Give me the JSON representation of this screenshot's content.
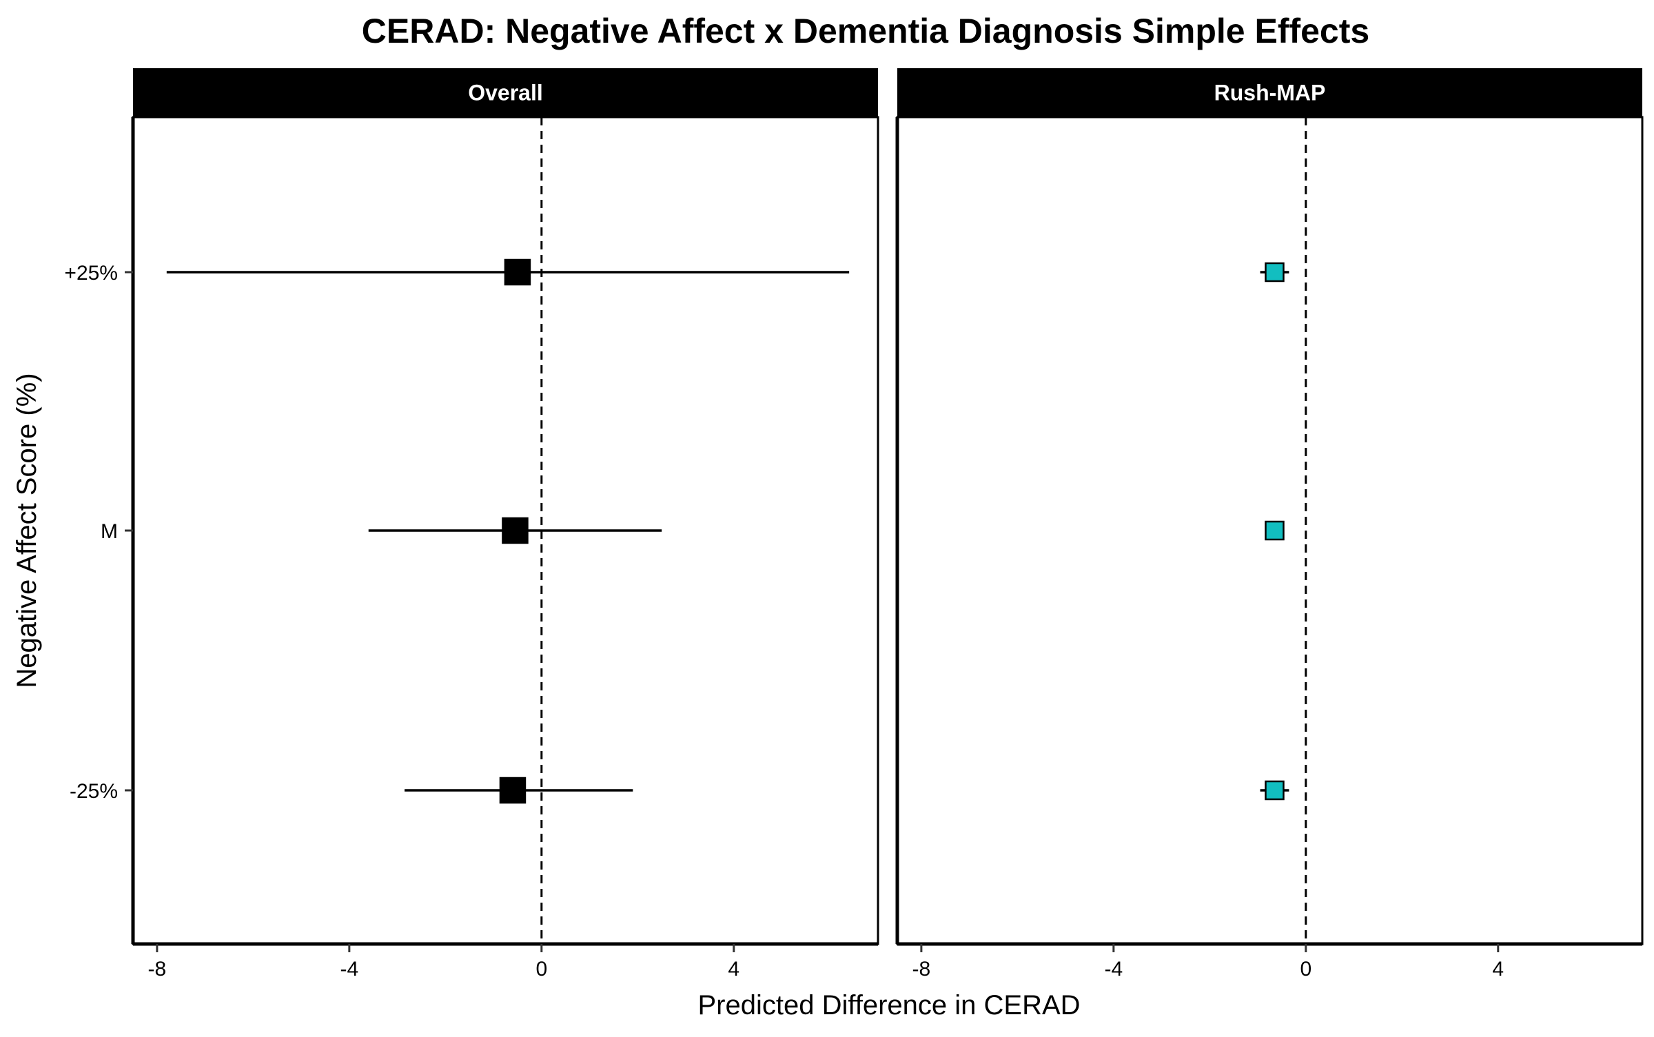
{
  "chart_data": {
    "type": "scatter",
    "subtype": "forest-plot",
    "title": "CERAD: Negative Affect x Dementia Diagnosis Simple Effects",
    "xlabel": "Predicted Difference in CERAD",
    "ylabel": "Negative Affect Score (%)",
    "xlim": [
      -8.5,
      7
    ],
    "x_ticks": [
      -8,
      -4,
      0,
      4
    ],
    "x_tick_labels": [
      "-8",
      "-4",
      "0",
      "4"
    ],
    "categories": [
      "+25%",
      "M",
      "-25%"
    ],
    "reference_line": {
      "x": 0,
      "style": "dashed"
    },
    "grid": false,
    "panels": [
      {
        "label": "Overall",
        "marker_color": "#000000",
        "marker_size": "large",
        "series": [
          {
            "category": "+25%",
            "estimate": -0.5,
            "ci_low": -7.8,
            "ci_high": 6.4
          },
          {
            "category": "M",
            "estimate": -0.55,
            "ci_low": -3.6,
            "ci_high": 2.5
          },
          {
            "category": "-25%",
            "estimate": -0.6,
            "ci_low": -2.85,
            "ci_high": 1.9
          }
        ]
      },
      {
        "label": "Rush-MAP",
        "marker_color": "#12BEC0",
        "marker_size": "small",
        "series": [
          {
            "category": "+25%",
            "estimate": -0.65,
            "ci_low": -0.95,
            "ci_high": -0.35
          },
          {
            "category": "M",
            "estimate": -0.65,
            "ci_low": -0.72,
            "ci_high": -0.58
          },
          {
            "category": "-25%",
            "estimate": -0.65,
            "ci_low": -0.95,
            "ci_high": -0.35
          }
        ]
      }
    ]
  }
}
